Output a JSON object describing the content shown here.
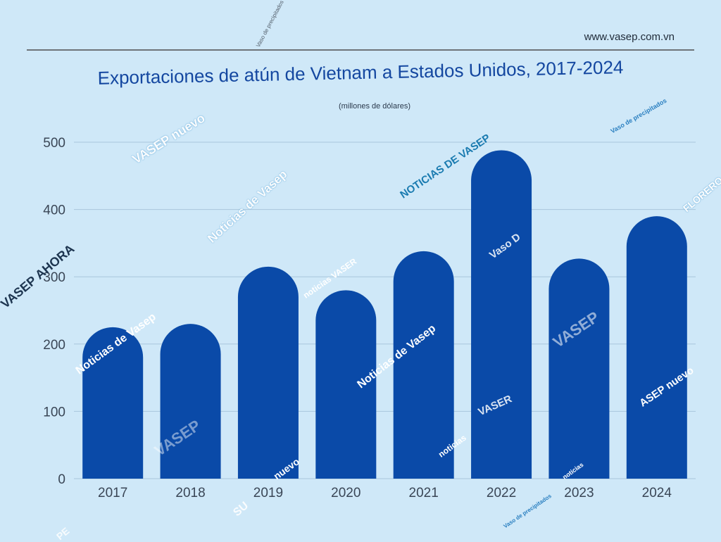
{
  "header": {
    "site_url": "www.vasep.com.vn"
  },
  "colors": {
    "background": "#cfe8f8",
    "bar": "#0a4aa8",
    "title": "#1447a0",
    "gridline": "#a9c6dc",
    "axis_text": "#3a4656"
  },
  "chart_data": {
    "type": "bar",
    "title": "Exportaciones de atún de Vietnam a Estados Unidos, 2017-2024",
    "subtitle": "(millones de dólares)",
    "xlabel": "",
    "ylabel": "",
    "categories": [
      "2017",
      "2018",
      "2019",
      "2020",
      "2021",
      "2022",
      "2023",
      "2024"
    ],
    "values": [
      225,
      230,
      315,
      280,
      338,
      488,
      327,
      390
    ],
    "ylim": [
      0,
      500
    ],
    "yticks": [
      0,
      100,
      200,
      300,
      400,
      500
    ],
    "grid": true,
    "bar_shape": "rounded-top"
  },
  "watermarks": [
    "Vaso de precipitados",
    "VASEP nuevo",
    "Noticias de Vasep",
    "NOTICIAS DE VASEP",
    "Vaso de precipitados",
    "FLORERO",
    "VASEP AHORA",
    "noticias VASER",
    "Noticias de Vasep",
    "Vaso D",
    "Noticias de Vasep",
    "VASEP",
    "VASEP",
    "ASEP nuevo",
    "VASER",
    "noticias",
    "nuevo",
    "noticias",
    "SU",
    "Vaso de precipitados",
    "PE"
  ]
}
